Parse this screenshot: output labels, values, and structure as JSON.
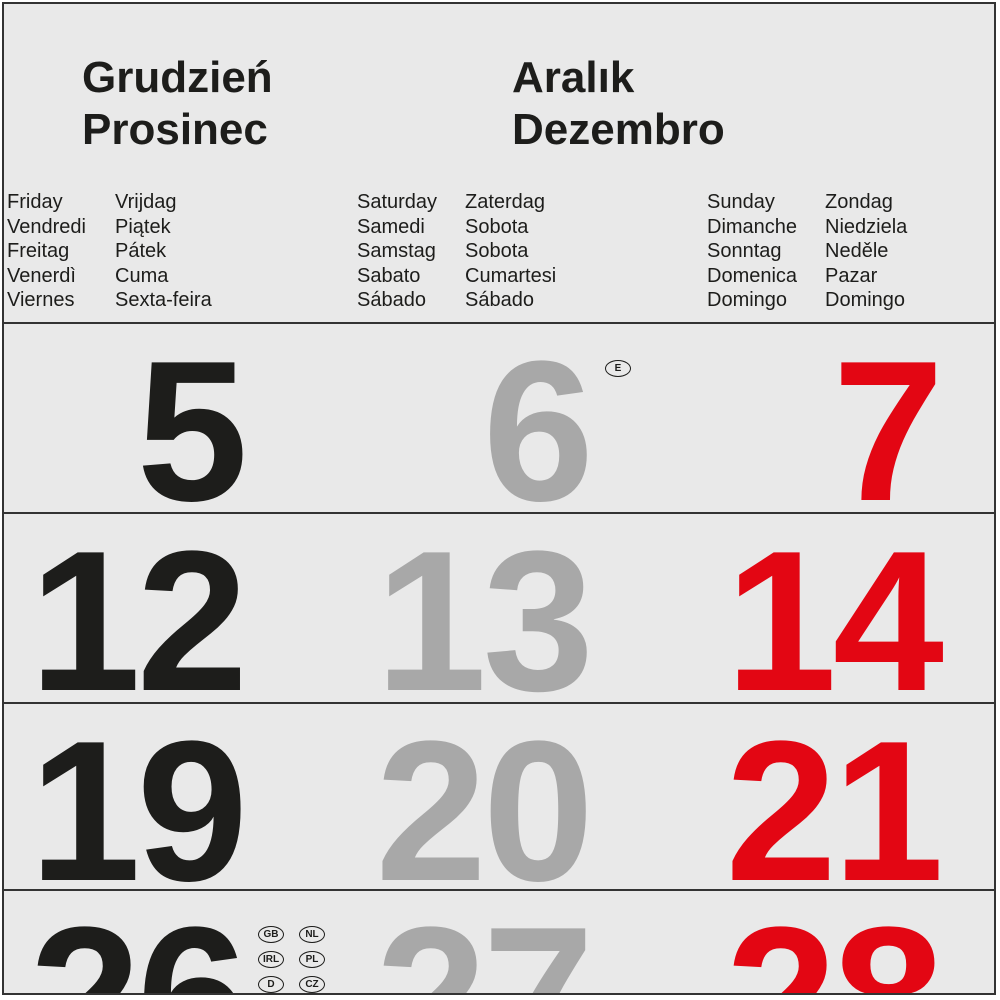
{
  "months": {
    "col1": [
      "Grudzień",
      "Prosinec"
    ],
    "col2": [
      "Aralık",
      "Dezembro"
    ]
  },
  "weekdays": {
    "fri_a": [
      "Friday",
      "Vendredi",
      "Freitag",
      "Venerdì",
      "Viernes"
    ],
    "fri_b": [
      "Vrijdag",
      "Piątek",
      "Pátek",
      "Cuma",
      "Sexta-feira"
    ],
    "sat_a": [
      "Saturday",
      "Samedi",
      "Samstag",
      "Sabato",
      "Sábado"
    ],
    "sat_b": [
      "Zaterdag",
      "Sobota",
      "Sobota",
      "Cumartesi",
      "Sábado"
    ],
    "sun_a": [
      "Sunday",
      "Dimanche",
      "Sonntag",
      "Domenica",
      "Domingo"
    ],
    "sun_b": [
      "Zondag",
      "Niedziela",
      "Neděle",
      "Pazar",
      "Domingo"
    ]
  },
  "weeks": [
    [
      "5",
      "6",
      "7"
    ],
    [
      "12",
      "13",
      "14"
    ],
    [
      "19",
      "20",
      "21"
    ],
    [
      "26",
      "27",
      "28"
    ]
  ],
  "holiday_badges": {
    "day6": [
      "E"
    ],
    "day26": [
      "GB",
      "NL",
      "IRL",
      "PL",
      "D",
      "CZ"
    ]
  },
  "colors": {
    "friday": "#1d1d1b",
    "saturday": "#a8a8a8",
    "sunday": "#e30613"
  }
}
